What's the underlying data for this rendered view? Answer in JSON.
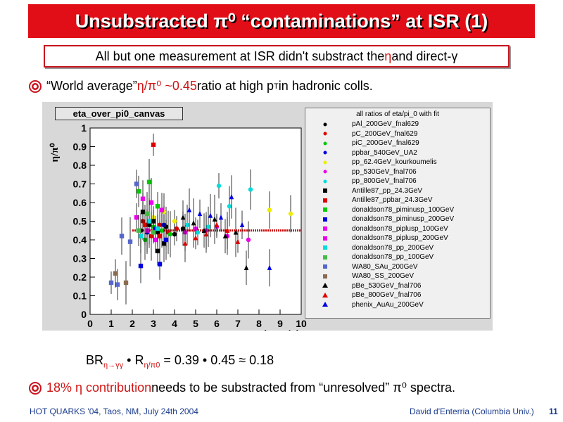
{
  "slide": {
    "title": "Unsubstracted π⁰ “contaminations” at ISR (1)",
    "subtitle_prefix": "All but one measurement at ISR didn't substract the ",
    "subtitle_eta": "η",
    "subtitle_mid": " and direct-",
    "subtitle_gamma": "γ",
    "bullet1_prefix": "“World average” ",
    "bullet1_ratio": "η/π⁰ ~0.45",
    "bullet1_suffix": " ratio at high p",
    "bullet1_pt_sub": "T",
    "bullet1_end": " in hadronic colls.",
    "canvas_name": "eta_over_pi0_canvas",
    "formula_br": "BR",
    "formula_br_sub": "η→γγ",
    "formula_dot1": " • R",
    "formula_r_sub": "η/π0",
    "formula_rest": " = 0.39 • 0.45 ≈ 0.18",
    "bullet2_red": "18% η contribution",
    "bullet2_rest": " needs to be substracted from “unresolved” π⁰ spectra.",
    "footer_left": "HOT QUARKS '04, Taos, NM, July 24th 2004",
    "footer_right": "David d'Enterria (Columbia Univ.)",
    "page_number": "11",
    "colors": {
      "title_bg": "#e10d17",
      "accent_red": "#d01515",
      "footer_blue": "#1a3a8c"
    }
  },
  "chart_data": {
    "type": "scatter",
    "title": "",
    "xlabel": "p_T(GeV/c)",
    "ylabel": "η/π⁰",
    "xlim": [
      0,
      10
    ],
    "ylim": [
      0,
      1
    ],
    "xticks": [
      "0",
      "1",
      "2",
      "3",
      "4",
      "5",
      "6",
      "7",
      "8",
      "9",
      "10"
    ],
    "yticks": [
      "0",
      "0.1",
      "0.2",
      "0.3",
      "0.4",
      "0.5",
      "0.6",
      "0.7",
      "0.8",
      "0.9",
      "1"
    ],
    "legend_title": "all ratios of eta/pi_0 with fit",
    "legend_position": "right",
    "fit_line": {
      "y": 0.45,
      "x_range": [
        2.0,
        10.0
      ],
      "color": "#cc0000",
      "style": "dotted"
    },
    "series": [
      {
        "name": "pAl_200GeV_fnal629",
        "color": "#000000",
        "marker": "circle",
        "points": [
          [
            2.4,
            0.45
          ],
          [
            2.8,
            0.48
          ],
          [
            3.2,
            0.44
          ],
          [
            3.6,
            0.47
          ],
          [
            4.0,
            0.43
          ],
          [
            4.4,
            0.46
          ]
        ]
      },
      {
        "name": "pC_200GeV_fnal629",
        "color": "#e00000",
        "marker": "circle",
        "points": [
          [
            2.5,
            0.5
          ],
          [
            2.9,
            0.42
          ],
          [
            3.3,
            0.48
          ],
          [
            3.7,
            0.44
          ],
          [
            4.1,
            0.46
          ]
        ]
      },
      {
        "name": "piC_200GeV_fnal629",
        "color": "#00cc00",
        "marker": "circle",
        "points": [
          [
            2.6,
            0.4
          ],
          [
            3.0,
            0.47
          ],
          [
            3.4,
            0.45
          ],
          [
            3.8,
            0.43
          ]
        ]
      },
      {
        "name": "ppbar_540GeV_UA2",
        "color": "#0000e0",
        "marker": "circle",
        "points": [
          [
            2.7,
            0.44
          ],
          [
            3.1,
            0.46
          ],
          [
            3.5,
            0.48
          ]
        ]
      },
      {
        "name": "pp_62.4GeV_kourkoumelis",
        "color": "#eeee00",
        "marker": "circle",
        "points": [
          [
            3.0,
            0.52
          ],
          [
            3.5,
            0.55
          ],
          [
            4.0,
            0.5
          ],
          [
            8.5,
            0.56
          ],
          [
            9.5,
            0.54
          ]
        ]
      },
      {
        "name": "pp_530GeV_fnal706",
        "color": "#ee00ee",
        "marker": "circle",
        "points": [
          [
            4.5,
            0.44
          ],
          [
            5.0,
            0.46
          ],
          [
            5.5,
            0.45
          ],
          [
            6.0,
            0.47
          ],
          [
            6.5,
            0.42
          ],
          [
            7.5,
            0.4
          ]
        ]
      },
      {
        "name": "pp_800GeV_fnal706",
        "color": "#00dddd",
        "marker": "circle",
        "points": [
          [
            4.6,
            0.48
          ],
          [
            5.1,
            0.44
          ],
          [
            5.6,
            0.47
          ],
          [
            6.1,
            0.69
          ],
          [
            6.6,
            0.58
          ],
          [
            7.6,
            0.67
          ]
        ]
      },
      {
        "name": "Antille87_pp_24.3GeV",
        "color": "#000000",
        "marker": "square",
        "points": [
          [
            2.5,
            0.55
          ],
          [
            3.0,
            0.5
          ],
          [
            3.2,
            0.34
          ],
          [
            3.5,
            0.38
          ]
        ]
      },
      {
        "name": "Antille87_ppbar_24.3GeV",
        "color": "#e00000",
        "marker": "square",
        "points": [
          [
            2.6,
            0.48
          ],
          [
            3.0,
            0.91
          ],
          [
            3.3,
            0.42
          ]
        ]
      },
      {
        "name": "donaldson78_piminusp_100GeV",
        "color": "#00cc00",
        "marker": "square",
        "points": [
          [
            2.3,
            0.66
          ],
          [
            2.8,
            0.71
          ],
          [
            3.2,
            0.58
          ]
        ]
      },
      {
        "name": "donaldson78_piminusp_200GeV",
        "color": "#0000e0",
        "marker": "square",
        "points": [
          [
            2.4,
            0.26
          ],
          [
            3.3,
            0.27
          ],
          [
            3.6,
            0.4
          ]
        ]
      },
      {
        "name": "donaldson78_piplusp_100GeV",
        "color": "#ee00ee",
        "marker": "square",
        "points": [
          [
            2.5,
            0.62
          ],
          [
            2.9,
            0.6
          ],
          [
            3.4,
            0.56
          ]
        ]
      },
      {
        "name": "donaldson78_piplusp_200GeV",
        "color": "#ee00ee",
        "marker": "square",
        "points": [
          [
            2.2,
            0.52
          ],
          [
            2.7,
            0.45
          ],
          [
            3.1,
            0.4
          ]
        ]
      },
      {
        "name": "donaldson78_pp_200GeV",
        "color": "#00dddd",
        "marker": "square",
        "points": [
          [
            2.4,
            0.42
          ],
          [
            2.8,
            0.5
          ],
          [
            3.2,
            0.46
          ]
        ]
      },
      {
        "name": "donaldson78_pp_100GeV",
        "color": "#44bb44",
        "marker": "square",
        "points": [
          [
            2.3,
            0.45
          ],
          [
            2.7,
            0.54
          ],
          [
            3.0,
            0.44
          ]
        ]
      },
      {
        "name": "WA80_SAu_200GeV",
        "color": "#5566cc",
        "marker": "square",
        "points": [
          [
            1.0,
            0.17
          ],
          [
            1.3,
            0.16
          ],
          [
            1.5,
            0.42
          ],
          [
            1.9,
            0.39
          ],
          [
            2.2,
            0.7
          ]
        ]
      },
      {
        "name": "WA80_SS_200GeV",
        "color": "#8b6a4e",
        "marker": "square",
        "points": [
          [
            1.2,
            0.22
          ],
          [
            1.7,
            0.17
          ]
        ]
      },
      {
        "name": "pBe_530GeV_fnal706",
        "color": "#000000",
        "marker": "triangle",
        "points": [
          [
            4.4,
            0.52
          ],
          [
            4.9,
            0.49
          ],
          [
            5.4,
            0.45
          ],
          [
            5.9,
            0.51
          ],
          [
            6.4,
            0.42
          ],
          [
            6.9,
            0.44
          ],
          [
            7.4,
            0.25
          ]
        ]
      },
      {
        "name": "pBe_800GeV_fnal706",
        "color": "#e00000",
        "marker": "triangle",
        "points": [
          [
            4.5,
            0.38
          ],
          [
            5.0,
            0.41
          ],
          [
            5.5,
            0.43
          ],
          [
            6.0,
            0.48
          ],
          [
            6.5,
            0.45
          ],
          [
            7.0,
            0.39
          ]
        ]
      },
      {
        "name": "phenix_AuAu_200GeV",
        "color": "#0000e0",
        "marker": "triangle",
        "points": [
          [
            4.7,
            0.56
          ],
          [
            5.2,
            0.54
          ],
          [
            5.7,
            0.53
          ],
          [
            6.2,
            0.52
          ],
          [
            6.7,
            0.63
          ],
          [
            7.2,
            0.48
          ],
          [
            8.5,
            0.25
          ]
        ]
      }
    ]
  }
}
